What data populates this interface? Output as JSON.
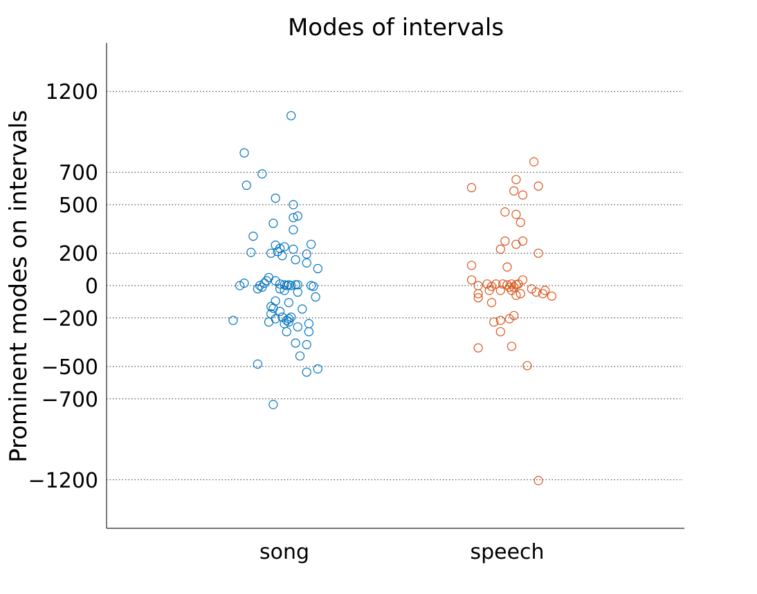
{
  "chart_data": {
    "type": "scatter",
    "title": "Modes of intervals",
    "xlabel": "",
    "ylabel": "Prominent modes on intervals",
    "categories": [
      "song",
      "speech"
    ],
    "y_ticks": [
      -1200,
      -700,
      -500,
      -200,
      0,
      200,
      500,
      700,
      1200
    ],
    "ylim": [
      -1500,
      1500
    ],
    "grid": "horizontal dotted",
    "series": [
      {
        "category": "song",
        "color": "#0072BD",
        "marker": "open-circle",
        "points": [
          {
            "x_offset": 0.03,
            "y": 1050
          },
          {
            "x_offset": -0.18,
            "y": 820
          },
          {
            "x_offset": -0.1,
            "y": 690
          },
          {
            "x_offset": -0.17,
            "y": 620
          },
          {
            "x_offset": -0.04,
            "y": 540
          },
          {
            "x_offset": 0.04,
            "y": 500
          },
          {
            "x_offset": 0.06,
            "y": 430
          },
          {
            "x_offset": 0.04,
            "y": 420
          },
          {
            "x_offset": -0.05,
            "y": 385
          },
          {
            "x_offset": 0.04,
            "y": 345
          },
          {
            "x_offset": -0.14,
            "y": 305
          },
          {
            "x_offset": 0.12,
            "y": 255
          },
          {
            "x_offset": -0.04,
            "y": 250
          },
          {
            "x_offset": 0.0,
            "y": 240
          },
          {
            "x_offset": -0.02,
            "y": 230
          },
          {
            "x_offset": 0.04,
            "y": 225
          },
          {
            "x_offset": -0.15,
            "y": 205
          },
          {
            "x_offset": -0.06,
            "y": 200
          },
          {
            "x_offset": -0.03,
            "y": 210
          },
          {
            "x_offset": 0.1,
            "y": 195
          },
          {
            "x_offset": -0.01,
            "y": 185
          },
          {
            "x_offset": 0.05,
            "y": 160
          },
          {
            "x_offset": 0.1,
            "y": 140
          },
          {
            "x_offset": 0.15,
            "y": 105
          },
          {
            "x_offset": -0.07,
            "y": 50
          },
          {
            "x_offset": -0.08,
            "y": 30
          },
          {
            "x_offset": -0.04,
            "y": 30
          },
          {
            "x_offset": -0.18,
            "y": 15
          },
          {
            "x_offset": -0.09,
            "y": 15
          },
          {
            "x_offset": -0.02,
            "y": 10
          },
          {
            "x_offset": 0.0,
            "y": 5
          },
          {
            "x_offset": 0.01,
            "y": 0
          },
          {
            "x_offset": 0.02,
            "y": 5
          },
          {
            "x_offset": 0.03,
            "y": 0
          },
          {
            "x_offset": 0.05,
            "y": 5
          },
          {
            "x_offset": 0.06,
            "y": 5
          },
          {
            "x_offset": -0.2,
            "y": 0
          },
          {
            "x_offset": -0.11,
            "y": 0
          },
          {
            "x_offset": 0.12,
            "y": 0
          },
          {
            "x_offset": 0.13,
            "y": -5
          },
          {
            "x_offset": -0.1,
            "y": -10
          },
          {
            "x_offset": -0.12,
            "y": -20
          },
          {
            "x_offset": -0.02,
            "y": -20
          },
          {
            "x_offset": 0.0,
            "y": -30
          },
          {
            "x_offset": 0.06,
            "y": -40
          },
          {
            "x_offset": 0.14,
            "y": -70
          },
          {
            "x_offset": -0.04,
            "y": -95
          },
          {
            "x_offset": 0.02,
            "y": -105
          },
          {
            "x_offset": -0.06,
            "y": -130
          },
          {
            "x_offset": -0.05,
            "y": -140
          },
          {
            "x_offset": -0.02,
            "y": -160
          },
          {
            "x_offset": 0.08,
            "y": -145
          },
          {
            "x_offset": -0.06,
            "y": -175
          },
          {
            "x_offset": -0.01,
            "y": -195
          },
          {
            "x_offset": 0.03,
            "y": -195
          },
          {
            "x_offset": 0.02,
            "y": -205
          },
          {
            "x_offset": -0.04,
            "y": -205
          },
          {
            "x_offset": 0.01,
            "y": -215
          },
          {
            "x_offset": -0.07,
            "y": -225
          },
          {
            "x_offset": 0.02,
            "y": -225
          },
          {
            "x_offset": 0.0,
            "y": -235
          },
          {
            "x_offset": 0.11,
            "y": -235
          },
          {
            "x_offset": -0.23,
            "y": -215
          },
          {
            "x_offset": 0.06,
            "y": -255
          },
          {
            "x_offset": 0.01,
            "y": -285
          },
          {
            "x_offset": 0.11,
            "y": -285
          },
          {
            "x_offset": 0.05,
            "y": -355
          },
          {
            "x_offset": 0.1,
            "y": -365
          },
          {
            "x_offset": 0.07,
            "y": -435
          },
          {
            "x_offset": -0.12,
            "y": -485
          },
          {
            "x_offset": 0.1,
            "y": -535
          },
          {
            "x_offset": 0.15,
            "y": -515
          },
          {
            "x_offset": -0.05,
            "y": -735
          }
        ]
      },
      {
        "category": "speech",
        "color": "#D95319",
        "marker": "open-circle",
        "points": [
          {
            "x_offset": 0.12,
            "y": 765
          },
          {
            "x_offset": 0.04,
            "y": 655
          },
          {
            "x_offset": -0.16,
            "y": 605
          },
          {
            "x_offset": 0.14,
            "y": 615
          },
          {
            "x_offset": 0.03,
            "y": 585
          },
          {
            "x_offset": 0.07,
            "y": 560
          },
          {
            "x_offset": -0.01,
            "y": 455
          },
          {
            "x_offset": 0.04,
            "y": 440
          },
          {
            "x_offset": 0.06,
            "y": 390
          },
          {
            "x_offset": -0.01,
            "y": 275
          },
          {
            "x_offset": 0.07,
            "y": 275
          },
          {
            "x_offset": 0.04,
            "y": 255
          },
          {
            "x_offset": -0.03,
            "y": 225
          },
          {
            "x_offset": 0.14,
            "y": 200
          },
          {
            "x_offset": -0.16,
            "y": 125
          },
          {
            "x_offset": 0.0,
            "y": 115
          },
          {
            "x_offset": -0.16,
            "y": 35
          },
          {
            "x_offset": 0.07,
            "y": 35
          },
          {
            "x_offset": -0.09,
            "y": 10
          },
          {
            "x_offset": -0.05,
            "y": 10
          },
          {
            "x_offset": -0.02,
            "y": 10
          },
          {
            "x_offset": 0.0,
            "y": 5
          },
          {
            "x_offset": 0.02,
            "y": 10
          },
          {
            "x_offset": 0.04,
            "y": 5
          },
          {
            "x_offset": 0.05,
            "y": 10
          },
          {
            "x_offset": -0.13,
            "y": 0
          },
          {
            "x_offset": -0.07,
            "y": -5
          },
          {
            "x_offset": 0.01,
            "y": -10
          },
          {
            "x_offset": 0.03,
            "y": -10
          },
          {
            "x_offset": 0.11,
            "y": -20
          },
          {
            "x_offset": -0.08,
            "y": -30
          },
          {
            "x_offset": -0.03,
            "y": -30
          },
          {
            "x_offset": 0.02,
            "y": -30
          },
          {
            "x_offset": 0.17,
            "y": -30
          },
          {
            "x_offset": 0.13,
            "y": -40
          },
          {
            "x_offset": 0.16,
            "y": -50
          },
          {
            "x_offset": -0.13,
            "y": -50
          },
          {
            "x_offset": 0.06,
            "y": -50
          },
          {
            "x_offset": 0.04,
            "y": -60
          },
          {
            "x_offset": 0.2,
            "y": -65
          },
          {
            "x_offset": -0.13,
            "y": -75
          },
          {
            "x_offset": -0.07,
            "y": -105
          },
          {
            "x_offset": 0.03,
            "y": -185
          },
          {
            "x_offset": 0.01,
            "y": -205
          },
          {
            "x_offset": -0.03,
            "y": -215
          },
          {
            "x_offset": -0.06,
            "y": -225
          },
          {
            "x_offset": -0.03,
            "y": -285
          },
          {
            "x_offset": 0.02,
            "y": -375
          },
          {
            "x_offset": -0.13,
            "y": -385
          },
          {
            "x_offset": 0.09,
            "y": -495
          },
          {
            "x_offset": 0.14,
            "y": -1205
          }
        ]
      }
    ]
  }
}
